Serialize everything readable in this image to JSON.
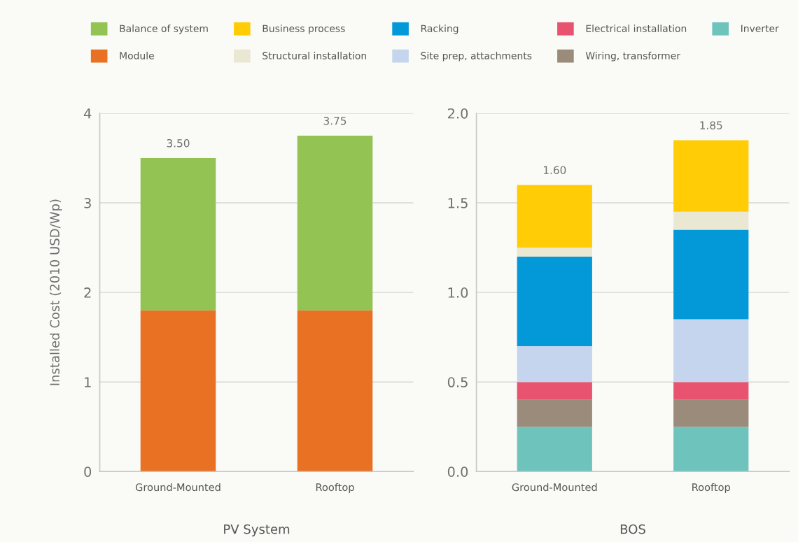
{
  "chart_data": [
    {
      "type": "bar",
      "stacked": true,
      "categories": [
        "Ground-Mounted",
        "Rooftop"
      ],
      "series": [
        {
          "name": "Module",
          "color": "#e87124",
          "values": [
            1.8,
            1.8
          ]
        },
        {
          "name": "Balance of system",
          "color": "#92c353",
          "values": [
            1.7,
            1.95
          ]
        }
      ],
      "totals": [
        "3.50",
        "3.75"
      ],
      "ylim": [
        0,
        4
      ],
      "yticks": [
        0,
        1,
        2,
        3,
        4
      ],
      "ylabel": "Installed Cost (2010 USD/Wp)",
      "xlabel": "PV System",
      "grid": "y",
      "legend": "top"
    },
    {
      "type": "bar",
      "stacked": true,
      "categories": [
        "Ground-Mounted",
        "Rooftop"
      ],
      "series": [
        {
          "name": "Inverter",
          "color": "#6ec4bd",
          "values": [
            0.25,
            0.25
          ]
        },
        {
          "name": "Wiring, transformer",
          "color": "#9b8b7a",
          "values": [
            0.15,
            0.15
          ]
        },
        {
          "name": "Electrical installation",
          "color": "#e8546f",
          "values": [
            0.1,
            0.1
          ]
        },
        {
          "name": "Site prep, attachments",
          "color": "#c5d5ee",
          "values": [
            0.2,
            0.35
          ]
        },
        {
          "name": "Racking",
          "color": "#0398d8",
          "values": [
            0.5,
            0.5
          ]
        },
        {
          "name": "Structural installation",
          "color": "#eae8d2",
          "values": [
            0.05,
            0.1
          ]
        },
        {
          "name": "Business process",
          "color": "#ffcc05",
          "values": [
            0.35,
            0.4
          ]
        }
      ],
      "totals": [
        "1.60",
        "1.85"
      ],
      "ylim": [
        0,
        2
      ],
      "yticks": [
        {
          "value": 0,
          "label": "0.0"
        },
        0.5,
        {
          "value": 1,
          "label": "1.0"
        },
        1.5,
        {
          "value": 2,
          "label": "2.0"
        }
      ],
      "xlabel": "BOS",
      "grid": "y",
      "legend": "top"
    }
  ]
}
